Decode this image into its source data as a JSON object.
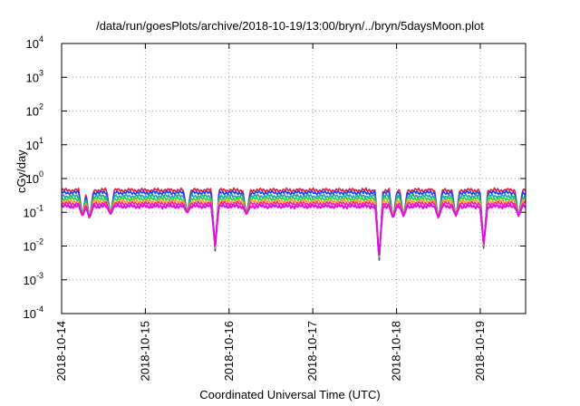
{
  "chart_data": {
    "type": "line",
    "title": "/data/run/goesPlots/archive/2018-10-19/13:00/bryn/../bryn/5daysMoon.plot",
    "xlabel": "Coordinated Universal Time (UTC)",
    "ylabel": "cGy/day",
    "yscale": "log",
    "ylim": [
      0.0001,
      10000
    ],
    "xlim": [
      "2018-10-14",
      "2018-10-19 13:00"
    ],
    "grid": true,
    "y_ticks": [
      {
        "base": "10",
        "exp": "4"
      },
      {
        "base": "10",
        "exp": "3"
      },
      {
        "base": "10",
        "exp": "2"
      },
      {
        "base": "10",
        "exp": "1"
      },
      {
        "base": "10",
        "exp": "0"
      },
      {
        "base": "10",
        "exp": "-1"
      },
      {
        "base": "10",
        "exp": "-2"
      },
      {
        "base": "10",
        "exp": "-3"
      },
      {
        "base": "10",
        "exp": "-4"
      }
    ],
    "x_ticks": [
      "2018-10-14",
      "2018-10-15",
      "2018-10-16",
      "2018-10-17",
      "2018-10-18",
      "2018-10-19"
    ],
    "colors": [
      "#e0203a",
      "#1f3cff",
      "#17a8a0",
      "#22d24a",
      "#ff9e1b",
      "#ff1fa0",
      "#e010e0"
    ],
    "baseline": [
      0.45,
      0.38,
      0.3,
      0.25,
      0.21,
      0.18,
      0.15
    ],
    "dips": [
      {
        "x": "2018-10-14 06:00",
        "y": 0.07
      },
      {
        "x": "2018-10-14 08:00",
        "y": 0.06
      },
      {
        "x": "2018-10-14 14:00",
        "y": 0.08
      },
      {
        "x": "2018-10-15 12:00",
        "y": 0.09
      },
      {
        "x": "2018-10-15 20:00",
        "y": 0.007
      },
      {
        "x": "2018-10-16 05:00",
        "y": 0.08
      },
      {
        "x": "2018-10-17 19:00",
        "y": 0.003
      },
      {
        "x": "2018-10-17 23:00",
        "y": 0.06
      },
      {
        "x": "2018-10-18 02:00",
        "y": 0.07
      },
      {
        "x": "2018-10-18 12:00",
        "y": 0.06
      },
      {
        "x": "2018-10-18 17:00",
        "y": 0.07
      },
      {
        "x": "2018-10-19 01:00",
        "y": 0.008
      },
      {
        "x": "2018-10-19 11:00",
        "y": 0.07
      }
    ]
  }
}
